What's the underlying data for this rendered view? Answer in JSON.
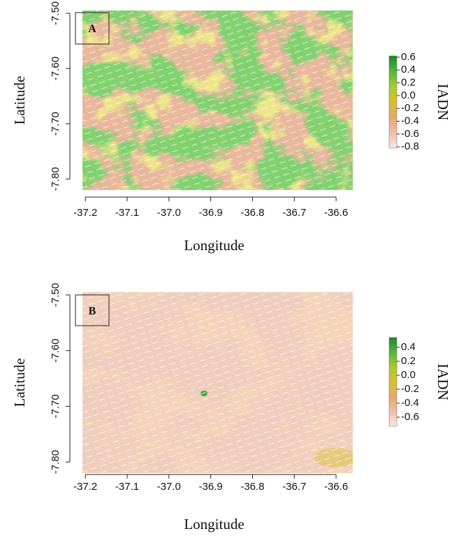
{
  "chart_data": [
    {
      "type": "raster",
      "panel": "A",
      "xlabel": "Longitude",
      "ylabel": "Latitude",
      "xlim": [
        -37.207,
        -36.56
      ],
      "ylim": [
        -7.82,
        -7.495
      ],
      "xticks": [
        -37.2,
        -37.1,
        {
          "value": -37.0,
          "label": "-37.0"
        },
        -36.9,
        -36.8,
        -36.7,
        -36.6
      ],
      "yticks": [
        {
          "value": -7.5,
          "label": "-7.50"
        },
        {
          "value": -7.6,
          "label": "-7.60"
        },
        {
          "value": -7.7,
          "label": "-7.70"
        },
        {
          "value": -7.8,
          "label": "-7.80"
        }
      ],
      "colorbar": {
        "label": "IADN",
        "lim": [
          -0.82,
          0.62
        ],
        "ticks": [
          0.6,
          0.4,
          0.2,
          {
            "value": 0.0,
            "label": "0.0"
          },
          -0.2,
          -0.4,
          -0.6,
          -0.8
        ],
        "colors": [
          "#f7e8e4",
          "#eebfa8",
          "#e6a86a",
          "#d8c032",
          "#a8cc2c",
          "#55b340",
          "#1c8a22"
        ]
      }
    },
    {
      "type": "raster",
      "panel": "B",
      "xlabel": "Longitude",
      "ylabel": "Latitude",
      "xlim": [
        -37.207,
        -36.56
      ],
      "ylim": [
        -7.82,
        -7.495
      ],
      "xticks": [
        -37.2,
        -37.1,
        {
          "value": -37.0,
          "label": "-37.0"
        },
        -36.9,
        -36.8,
        -36.7,
        -36.6
      ],
      "yticks": [
        {
          "value": -7.5,
          "label": "-7.50"
        },
        {
          "value": -7.6,
          "label": "-7.60"
        },
        {
          "value": -7.7,
          "label": "-7.70"
        },
        {
          "value": -7.8,
          "label": "-7.80"
        }
      ],
      "colorbar": {
        "label": "IADN",
        "lim": [
          -0.73,
          0.54
        ],
        "ticks": [
          0.4,
          0.2,
          {
            "value": 0.0,
            "label": "0.0"
          },
          -0.2,
          -0.4,
          -0.6
        ],
        "colors": [
          "#f7e8e4",
          "#eebfa8",
          "#e6a86a",
          "#d8c032",
          "#a8cc2c",
          "#55b340",
          "#1c8a22"
        ]
      }
    }
  ]
}
